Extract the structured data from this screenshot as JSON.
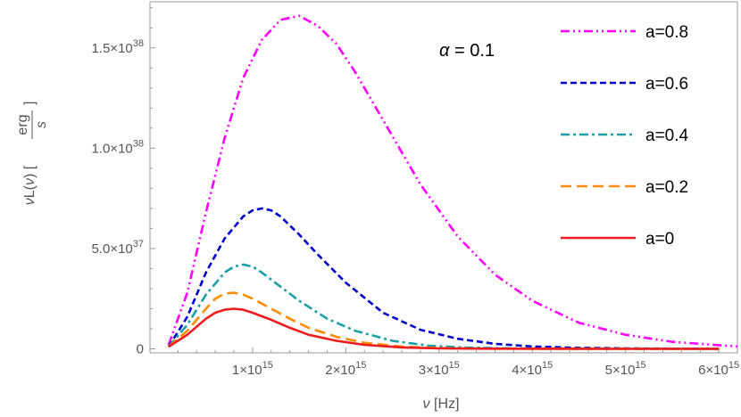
{
  "chart_data": {
    "type": "line",
    "title": "",
    "annotation": {
      "symbol": "α",
      "text": " = 0.1"
    },
    "xlabel": {
      "var": "ν",
      "unit": " [Hz]"
    },
    "ylabel": {
      "var": "ν",
      "mid": "L(",
      "var2": "ν",
      "tail": ") [",
      "num": "erg",
      "den": "s",
      "close": "]"
    },
    "xlim": [
      -100000000000000.0,
      6200000000000000.0
    ],
    "ylim": [
      -2e+36,
      1.73e+38
    ],
    "x_ticks": [
      {
        "value": 1000000000000000.0,
        "mant": "1",
        "exp": "15"
      },
      {
        "value": 2000000000000000.0,
        "mant": "2",
        "exp": "15"
      },
      {
        "value": 3000000000000000.0,
        "mant": "3",
        "exp": "15"
      },
      {
        "value": 4000000000000000.0,
        "mant": "4",
        "exp": "15"
      },
      {
        "value": 5000000000000000.0,
        "mant": "5",
        "exp": "15"
      },
      {
        "value": 6000000000000000.0,
        "mant": "6",
        "exp": "15"
      }
    ],
    "y_ticks": [
      {
        "value": 0,
        "mant": "0",
        "exp": ""
      },
      {
        "value": 5e+37,
        "mant": "5.0",
        "exp": "37"
      },
      {
        "value": 1e+38,
        "mant": "1.0",
        "exp": "38"
      },
      {
        "value": 1.5e+38,
        "mant": "1.5",
        "exp": "38"
      }
    ],
    "series": [
      {
        "name": "a=0.8",
        "color": "#ff00ff",
        "dash": "10,4,2,4,2,4",
        "x": [
          100000000000000.0,
          300000000000000.0,
          500000000000000.0,
          700000000000000.0,
          900000000000000.0,
          1100000000000000.0,
          1300000000000000.0,
          1500000000000000.0,
          1700000000000000.0,
          1900000000000000.0,
          2100000000000000.0,
          2400000000000000.0,
          2800000000000000.0,
          3200000000000000.0,
          3600000000000000.0,
          4000000000000000.0,
          4500000000000000.0,
          5000000000000000.0,
          5500000000000000.0,
          6000000000000000.0,
          6200000000000000.0
        ],
        "values": [
          2e+36,
          2.8e+37,
          6.8e+37,
          1.05e+38,
          1.35e+38,
          1.54e+38,
          1.64e+38,
          1.66e+38,
          1.61e+38,
          1.52e+38,
          1.38e+38,
          1.14e+38,
          8.2e+37,
          5.6e+37,
          3.7e+37,
          2.4e+37,
          1.3e+37,
          7e+36,
          3.5e+36,
          1.8e+36,
          1.2e+36
        ]
      },
      {
        "name": "a=0.6",
        "color": "#0000cd",
        "dash": "7,4",
        "x": [
          100000000000000.0,
          300000000000000.0,
          500000000000000.0,
          700000000000000.0,
          900000000000000.0,
          1000000000000000.0,
          1100000000000000.0,
          1200000000000000.0,
          1300000000000000.0,
          1500000000000000.0,
          1700000000000000.0,
          2000000000000000.0,
          2400000000000000.0,
          2800000000000000.0,
          3200000000000000.0,
          3600000000000000.0,
          4000000000000000.0,
          4500000000000000.0,
          5000000000000000.0,
          5500000000000000.0,
          6000000000000000.0
        ],
        "values": [
          1e+36,
          1.6e+37,
          3.8e+37,
          5.5e+37,
          6.6e+37,
          6.9e+37,
          7e+37,
          6.9e+37,
          6.6e+37,
          5.7e+37,
          4.7e+37,
          3.3e+37,
          1.8e+37,
          9.5e+36,
          5e+36,
          2.5e+36,
          1.2e+36,
          5e+35,
          2e+35,
          1e+35,
          5e+34
        ]
      },
      {
        "name": "a=0.4",
        "color": "#1a9fa6",
        "dash": "10,4,3,4",
        "x": [
          100000000000000.0,
          300000000000000.0,
          500000000000000.0,
          700000000000000.0,
          800000000000000.0,
          900000000000000.0,
          1000000000000000.0,
          1100000000000000.0,
          1300000000000000.0,
          1500000000000000.0,
          1800000000000000.0,
          2100000000000000.0,
          2500000000000000.0,
          2900000000000000.0,
          3300000000000000.0,
          3800000000000000.0,
          4500000000000000.0,
          5500000000000000.0,
          6000000000000000.0
        ],
        "values": [
          1e+36,
          1.2e+37,
          2.7e+37,
          3.8e+37,
          4.1e+37,
          4.2e+37,
          4.1e+37,
          3.8e+37,
          3.1e+37,
          2.4e+37,
          1.5e+37,
          9e+36,
          4e+36,
          1.5e+36,
          6e+35,
          2e+35,
          1e+35,
          0,
          0
        ]
      },
      {
        "name": "a=0.2",
        "color": "#ff8c00",
        "dash": "12,6",
        "x": [
          100000000000000.0,
          300000000000000.0,
          500000000000000.0,
          600000000000000.0,
          700000000000000.0,
          800000000000000.0,
          900000000000000.0,
          1000000000000000.0,
          1200000000000000.0,
          1400000000000000.0,
          1600000000000000.0,
          1900000000000000.0,
          2200000000000000.0,
          2600000000000000.0,
          3000000000000000.0,
          3500000000000000.0,
          4500000000000000.0,
          5500000000000000.0,
          6000000000000000.0
        ],
        "values": [
          1e+36,
          9e+36,
          2e+37,
          2.5e+37,
          2.75e+37,
          2.8e+37,
          2.7e+37,
          2.5e+37,
          2e+37,
          1.5e+37,
          1.05e+37,
          6e+36,
          3e+36,
          1.1e+36,
          4e+35,
          1e+35,
          0,
          0,
          0
        ]
      },
      {
        "name": "a=0",
        "color": "#ee1c1c",
        "dash": "",
        "x": [
          100000000000000.0,
          300000000000000.0,
          500000000000000.0,
          600000000000000.0,
          700000000000000.0,
          800000000000000.0,
          900000000000000.0,
          1000000000000000.0,
          1200000000000000.0,
          1400000000000000.0,
          1600000000000000.0,
          1900000000000000.0,
          2200000000000000.0,
          2600000000000000.0,
          3000000000000000.0,
          3500000000000000.0,
          4500000000000000.0,
          5500000000000000.0,
          6000000000000000.0
        ],
        "values": [
          1e+36,
          7e+36,
          1.5e+37,
          1.8e+37,
          1.95e+37,
          2e+37,
          1.95e+37,
          1.8e+37,
          1.45e+37,
          1.05e+37,
          7e+36,
          4e+36,
          2e+36,
          7e+35,
          2e+35,
          1e+35,
          0,
          0,
          0
        ]
      }
    ],
    "legend": "top-right"
  }
}
